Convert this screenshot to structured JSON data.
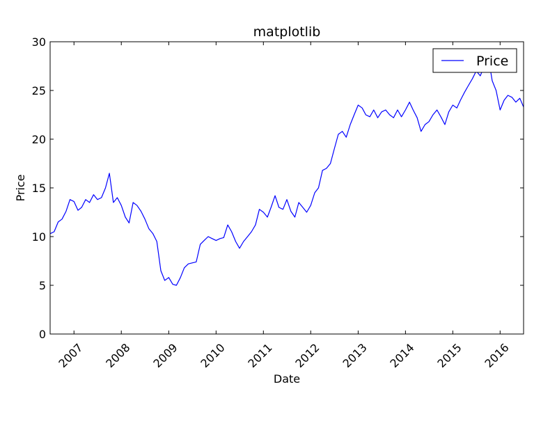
{
  "chart_data": {
    "type": "line",
    "title": "matplotlib",
    "xlabel": "Date",
    "ylabel": "Price",
    "x_range": [
      "2006-07-01",
      "2016-06-30"
    ],
    "ylim": [
      0,
      30
    ],
    "x_tick_labels": [
      "2007",
      "2008",
      "2009",
      "2010",
      "2011",
      "2012",
      "2013",
      "2014",
      "2015",
      "2016"
    ],
    "x_tick_label_rotation_deg": -45,
    "y_tick_labels": [
      "0",
      "5",
      "10",
      "15",
      "20",
      "25",
      "30"
    ],
    "grid": false,
    "legend": {
      "position": "top-right",
      "entries": [
        "Price"
      ]
    },
    "line_color": "#0000ff",
    "series": [
      {
        "name": "Price",
        "x": [
          "2006-07-01",
          "2006-08-01",
          "2006-09-01",
          "2006-10-01",
          "2006-11-01",
          "2006-12-01",
          "2007-01-01",
          "2007-02-01",
          "2007-03-01",
          "2007-04-01",
          "2007-05-01",
          "2007-06-01",
          "2007-07-01",
          "2007-08-01",
          "2007-09-01",
          "2007-10-01",
          "2007-11-01",
          "2007-12-01",
          "2008-01-01",
          "2008-02-01",
          "2008-03-01",
          "2008-04-01",
          "2008-05-01",
          "2008-06-01",
          "2008-07-01",
          "2008-08-01",
          "2008-09-01",
          "2008-10-01",
          "2008-11-01",
          "2008-12-01",
          "2009-01-01",
          "2009-02-01",
          "2009-03-01",
          "2009-04-01",
          "2009-05-01",
          "2009-06-01",
          "2009-07-01",
          "2009-08-01",
          "2009-09-01",
          "2009-10-01",
          "2009-11-01",
          "2009-12-01",
          "2010-01-01",
          "2010-02-01",
          "2010-03-01",
          "2010-04-01",
          "2010-05-01",
          "2010-06-01",
          "2010-07-01",
          "2010-08-01",
          "2010-09-01",
          "2010-10-01",
          "2010-11-01",
          "2010-12-01",
          "2011-01-01",
          "2011-02-01",
          "2011-03-01",
          "2011-04-01",
          "2011-05-01",
          "2011-06-01",
          "2011-07-01",
          "2011-08-01",
          "2011-09-01",
          "2011-10-01",
          "2011-11-01",
          "2011-12-01",
          "2012-01-01",
          "2012-02-01",
          "2012-03-01",
          "2012-04-01",
          "2012-05-01",
          "2012-06-01",
          "2012-07-01",
          "2012-08-01",
          "2012-09-01",
          "2012-10-01",
          "2012-11-01",
          "2012-12-01",
          "2013-01-01",
          "2013-02-01",
          "2013-03-01",
          "2013-04-01",
          "2013-05-01",
          "2013-06-01",
          "2013-07-01",
          "2013-08-01",
          "2013-09-01",
          "2013-10-01",
          "2013-11-01",
          "2013-12-01",
          "2014-01-01",
          "2014-02-01",
          "2014-03-01",
          "2014-04-01",
          "2014-05-01",
          "2014-06-01",
          "2014-07-01",
          "2014-08-01",
          "2014-09-01",
          "2014-10-01",
          "2014-11-01",
          "2014-12-01",
          "2015-01-01",
          "2015-02-01",
          "2015-03-01",
          "2015-04-01",
          "2015-05-01",
          "2015-06-01",
          "2015-07-01",
          "2015-08-01",
          "2015-09-01",
          "2015-10-01",
          "2015-11-01",
          "2015-12-01",
          "2016-01-01",
          "2016-02-01",
          "2016-03-01",
          "2016-04-01",
          "2016-05-01",
          "2016-06-01",
          "2016-06-30"
        ],
        "values": [
          10.3,
          10.5,
          11.5,
          11.8,
          12.6,
          13.8,
          13.6,
          12.7,
          13.0,
          13.8,
          13.5,
          14.3,
          13.8,
          14.0,
          15.0,
          16.5,
          13.5,
          14.0,
          13.2,
          12.0,
          11.4,
          13.5,
          13.2,
          12.6,
          11.8,
          10.8,
          10.3,
          9.5,
          6.5,
          5.5,
          5.8,
          5.1,
          5.0,
          5.8,
          6.8,
          7.2,
          7.3,
          7.4,
          9.2,
          9.6,
          10.0,
          9.8,
          9.6,
          9.8,
          9.9,
          11.2,
          10.5,
          9.5,
          8.8,
          9.5,
          10.0,
          10.5,
          11.2,
          12.8,
          12.5,
          12.0,
          13.0,
          14.2,
          13.0,
          12.8,
          13.8,
          12.6,
          12.0,
          13.5,
          13.0,
          12.5,
          13.2,
          14.5,
          15.0,
          16.8,
          17.0,
          17.5,
          19.0,
          20.5,
          20.8,
          20.2,
          21.5,
          22.5,
          23.5,
          23.2,
          22.5,
          22.3,
          23.0,
          22.2,
          22.8,
          23.0,
          22.5,
          22.2,
          23.0,
          22.3,
          23.0,
          23.8,
          23.0,
          22.2,
          20.8,
          21.5,
          21.8,
          22.5,
          23.0,
          22.3,
          21.5,
          22.8,
          23.5,
          23.2,
          24.0,
          24.8,
          25.5,
          26.2,
          27.0,
          26.5,
          27.5,
          28.5,
          26.0,
          25.0,
          23.0,
          24.0,
          24.5,
          24.3,
          23.8,
          24.2,
          23.3
        ]
      }
    ]
  }
}
